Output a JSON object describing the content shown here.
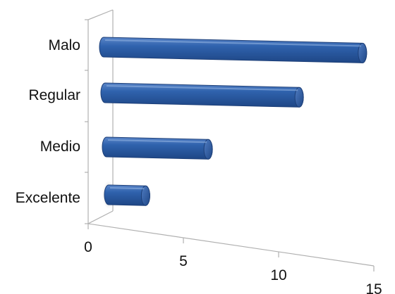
{
  "chart_data": {
    "type": "bar",
    "orientation": "horizontal",
    "style": "3d-cylinder",
    "categories": [
      "Malo",
      "Regular",
      "Medio",
      "Excelente"
    ],
    "values": [
      14,
      10.5,
      5.5,
      2
    ],
    "xlim": [
      0,
      15
    ],
    "xticks": [
      "0",
      "5",
      "10",
      "15"
    ],
    "title": "",
    "xlabel": "",
    "ylabel": "",
    "grid": false,
    "legend": "none",
    "bar_color": "#2e5fa6",
    "bar_edge_color": "#1d3f78",
    "axis_color": "#b0b0b0"
  }
}
